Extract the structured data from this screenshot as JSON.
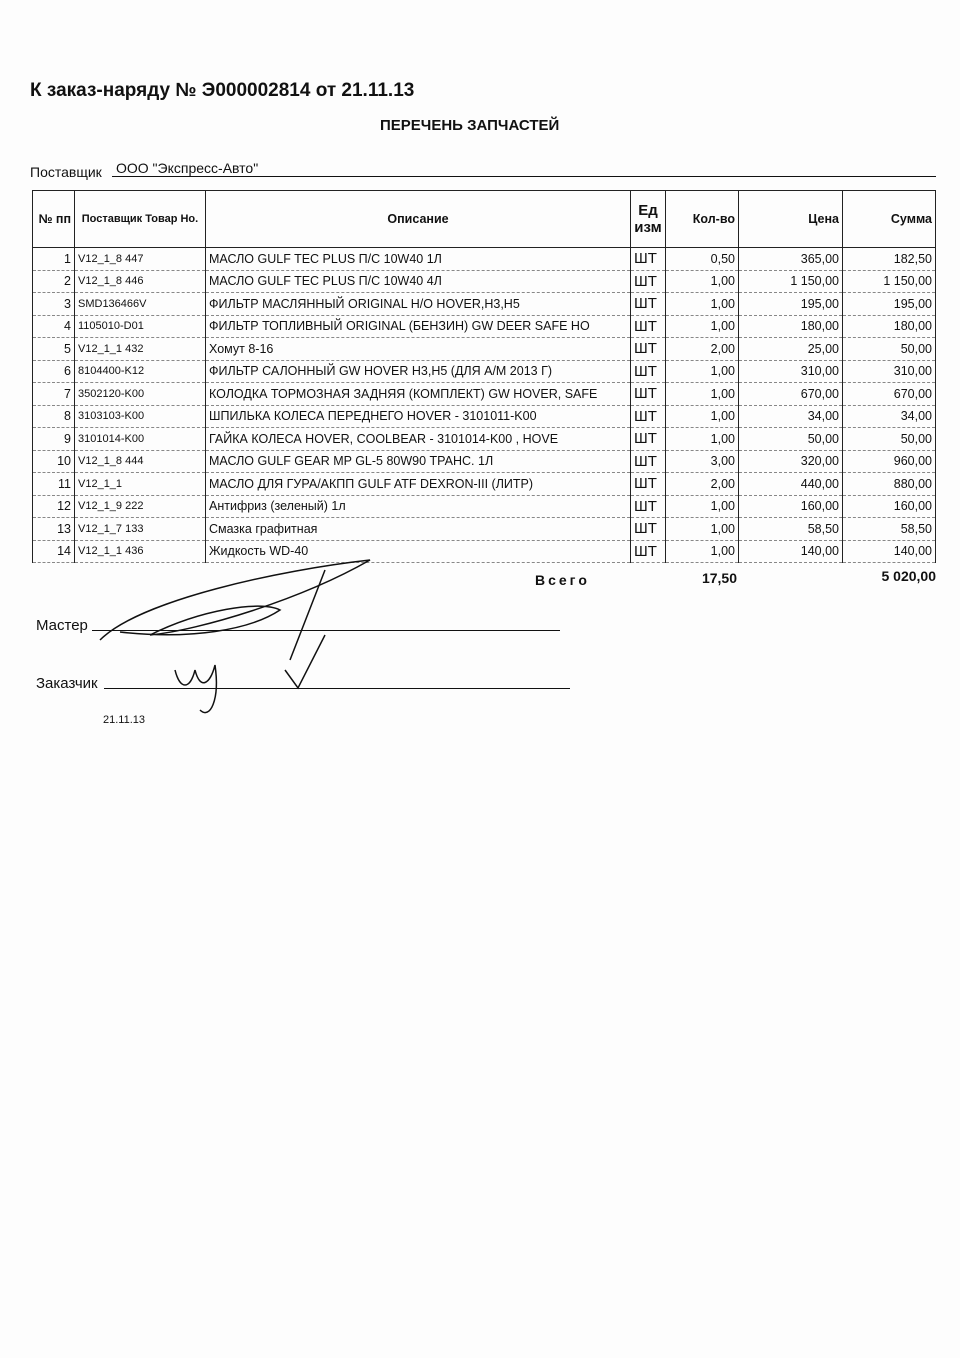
{
  "document": {
    "title": "К заказ-наряду № Э000002814 от 21.11.13",
    "subtitle": "ПЕРЕЧЕНЬ ЗАПЧАСТЕЙ",
    "supplier_label": "Поставщик",
    "supplier_value": "ООО \"Экспресс-Авто\"",
    "columns": [
      "№ пп",
      "Поставщик Товар Но.",
      "Описание",
      "Ед изм",
      "Кол-во",
      "Цена",
      "Сумма"
    ],
    "rows": [
      [
        "1",
        "V12_1_8 447",
        "МАСЛО GULF TEC PLUS П/С 10W40 1Л",
        "ШТ",
        "0,50",
        "365,00",
        "182,50"
      ],
      [
        "2",
        "V12_1_8 446",
        "МАСЛО GULF TEC PLUS П/С 10W40 4Л",
        "ШТ",
        "1,00",
        "1 150,00",
        "1 150,00"
      ],
      [
        "3",
        "SMD136466V",
        "ФИЛЬТР МАСЛЯННЫЙ ORIGINAL H/O HOVER,H3,H5",
        "ШТ",
        "1,00",
        "195,00",
        "195,00"
      ],
      [
        "4",
        "1105010-D01",
        "ФИЛЬТР ТОПЛИВНЫЙ ORIGINAL (БЕНЗИН) GW DEER SAFE HO",
        "ШТ",
        "1,00",
        "180,00",
        "180,00"
      ],
      [
        "5",
        "V12_1_1 432",
        "Хомут 8-16",
        "ШТ",
        "2,00",
        "25,00",
        "50,00"
      ],
      [
        "6",
        "8104400-K12",
        "ФИЛЬТР САЛОННЫЙ GW HOVER H3,H5 (ДЛЯ А/М 2013 Г)",
        "ШТ",
        "1,00",
        "310,00",
        "310,00"
      ],
      [
        "7",
        "3502120-K00",
        "КОЛОДКА ТОРМОЗНАЯ ЗАДНЯЯ (КОМПЛЕКТ) GW HOVER, SAFE",
        "ШТ",
        "1,00",
        "670,00",
        "670,00"
      ],
      [
        "8",
        "3103103-K00",
        "ШПИЛЬКА КОЛЕСА ПЕРЕДНЕГО HOVER  - 3101011-K00",
        "ШТ",
        "1,00",
        "34,00",
        "34,00"
      ],
      [
        "9",
        "3101014-K00",
        "ГАЙКА КОЛЕСА HOVER, COOLBEAR  - 3101014-K00 , HOVE",
        "ШТ",
        "1,00",
        "50,00",
        "50,00"
      ],
      [
        "10",
        "V12_1_8 444",
        "МАСЛО GULF GEAR MP GL-5 80W90 ТРАНС. 1Л",
        "ШТ",
        "3,00",
        "320,00",
        "960,00"
      ],
      [
        "11",
        "V12_1_1",
        "МАСЛО ДЛЯ ГУРА/АКПП GULF ATF DEXRON-III (ЛИТР)",
        "ШТ",
        "2,00",
        "440,00",
        "880,00"
      ],
      [
        "12",
        "V12_1_9 222",
        "Антифриз (зеленый) 1л",
        "ШТ",
        "1,00",
        "160,00",
        "160,00"
      ],
      [
        "13",
        "V12_1_7 133",
        "Смазка графитная",
        "ШТ",
        "1,00",
        "58,50",
        "58,50"
      ],
      [
        "14",
        "V12_1_1 436",
        "Жидкость WD-40",
        "ШТ",
        "1,00",
        "140,00",
        "140,00"
      ]
    ],
    "total_label": "Всего",
    "total_qty": "17,50",
    "total_sum": "5 020,00",
    "master_label": "Мастер",
    "customer_label": "Заказчик",
    "date": "21.11.13"
  }
}
